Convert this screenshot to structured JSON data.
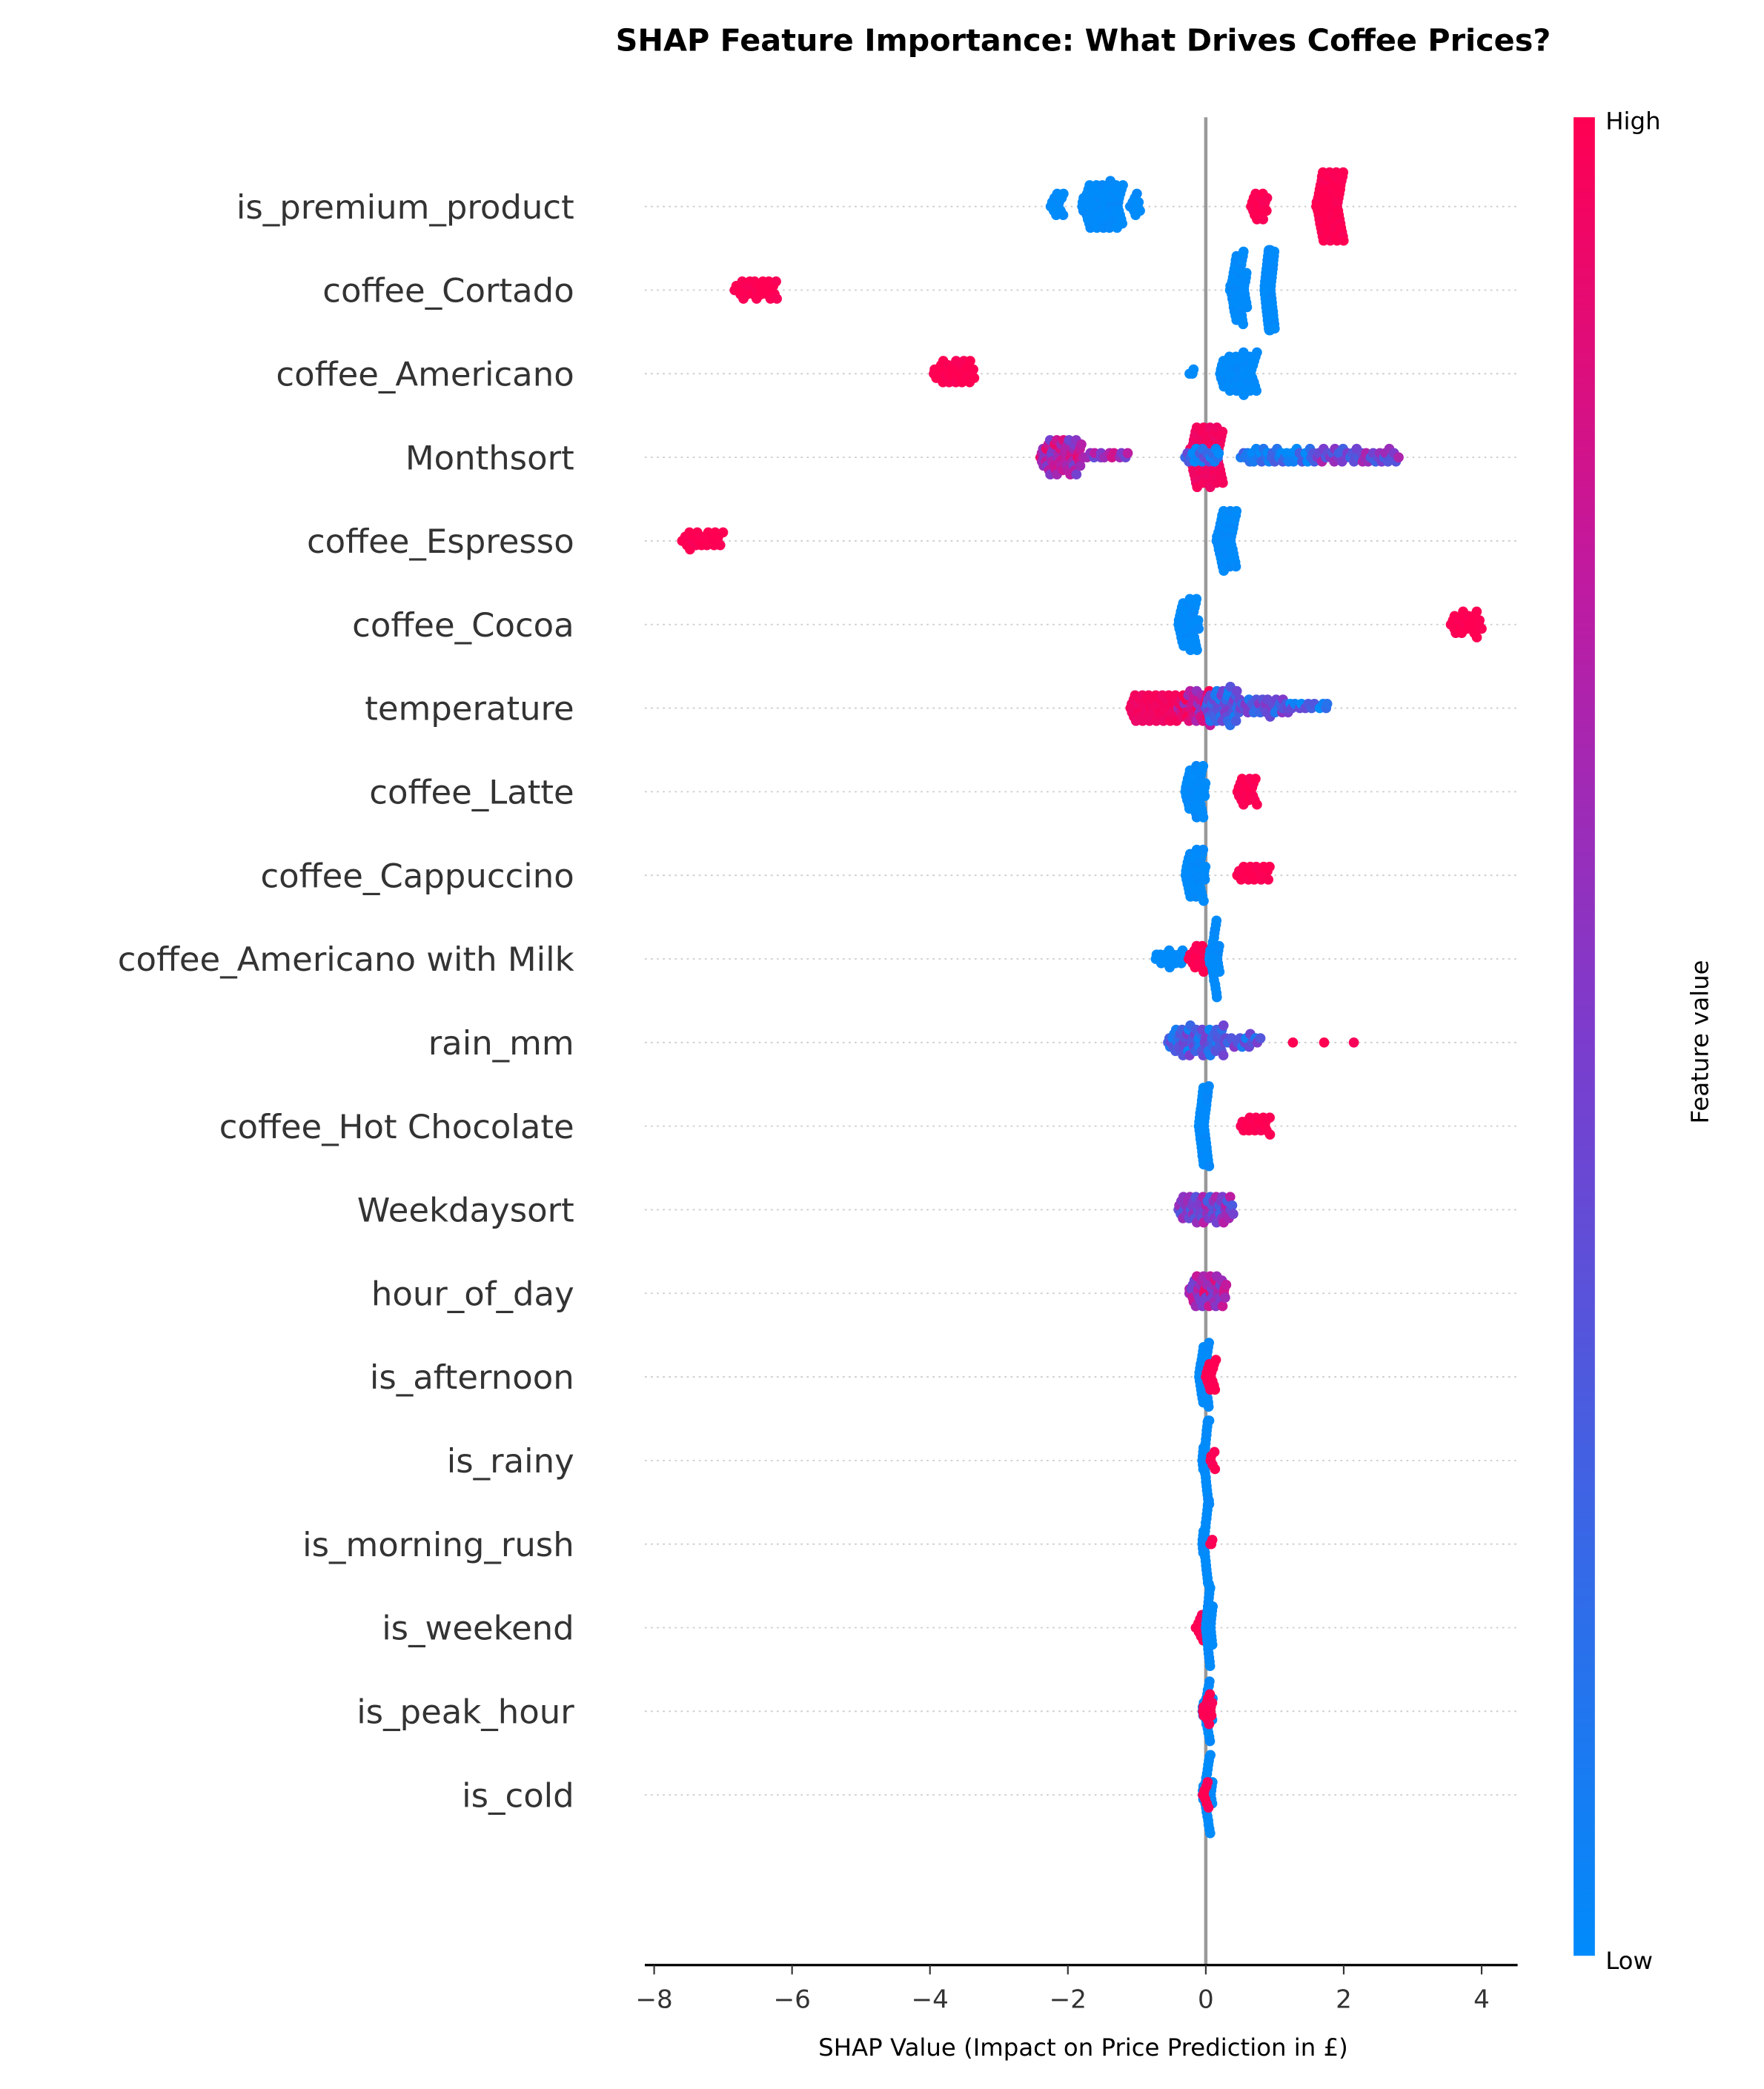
{
  "chart_data": {
    "type": "scatter",
    "subtype": "shap-beeswarm",
    "title": "SHAP Feature Importance: What Drives Coffee Prices?",
    "xlabel": "SHAP Value (Impact on Price Prediction in £)",
    "xlim": [
      -8.3,
      4.6
    ],
    "xticks": [
      -8,
      -6,
      -4,
      -2,
      0,
      2,
      4
    ],
    "xtick_labels": [
      "−8",
      "−6",
      "−4",
      "−2",
      "0",
      "2",
      "4"
    ],
    "colorbar": {
      "label": "Feature value",
      "high": "High",
      "low": "Low",
      "low_color": "#008bfb",
      "high_color": "#ff0052"
    },
    "features": [
      {
        "name": "is_premium_product",
        "clusters": [
          [
            -2.25,
            -2.05,
            0,
            12
          ],
          [
            -1.8,
            -1.2,
            0,
            70
          ],
          [
            -1.1,
            -0.95,
            0,
            10
          ],
          [
            0.65,
            0.9,
            1,
            18
          ],
          [
            1.6,
            2.0,
            1,
            70
          ]
        ]
      },
      {
        "name": "coffee_Cortado",
        "clusters": [
          [
            -6.85,
            -6.2,
            1,
            30
          ],
          [
            0.35,
            0.6,
            0,
            45
          ],
          [
            0.85,
            1.0,
            0,
            45
          ]
        ]
      },
      {
        "name": "coffee_Americano",
        "clusters": [
          [
            -3.95,
            -3.35,
            1,
            35
          ],
          [
            -0.25,
            -0.15,
            0,
            3
          ],
          [
            0.2,
            0.75,
            0,
            55
          ]
        ]
      },
      {
        "name": "Monthsort",
        "clusters": [
          [
            -2.4,
            -1.8,
            0.7,
            55
          ],
          [
            -1.8,
            -1.1,
            0.65,
            15
          ],
          [
            -0.25,
            0.25,
            0.95,
            75
          ],
          [
            -0.3,
            0.2,
            0.2,
            20
          ],
          [
            0.5,
            1.6,
            0.1,
            40
          ],
          [
            1.6,
            2.8,
            0.45,
            40
          ]
        ]
      },
      {
        "name": "coffee_Espresso",
        "clusters": [
          [
            -7.6,
            -7.0,
            1,
            25
          ],
          [
            0.15,
            0.45,
            0,
            45
          ]
        ]
      },
      {
        "name": "coffee_Cocoa",
        "clusters": [
          [
            -0.4,
            -0.1,
            0,
            40
          ],
          [
            3.55,
            4.0,
            1,
            25
          ]
        ]
      },
      {
        "name": "temperature",
        "clusters": [
          [
            -1.1,
            -0.4,
            0.95,
            50
          ],
          [
            -0.4,
            0.1,
            0.8,
            40
          ],
          [
            0,
            0.5,
            0.3,
            45
          ],
          [
            0.5,
            1.2,
            0.35,
            30
          ],
          [
            1.1,
            1.8,
            0.2,
            15
          ]
        ]
      },
      {
        "name": "coffee_Latte",
        "clusters": [
          [
            -0.3,
            0,
            0,
            40
          ],
          [
            0.45,
            0.75,
            1,
            20
          ]
        ]
      },
      {
        "name": "coffee_Cappuccino",
        "clusters": [
          [
            -0.3,
            0,
            0,
            40
          ],
          [
            0.45,
            0.95,
            1,
            20
          ]
        ]
      },
      {
        "name": "coffee_Americano with Milk",
        "clusters": [
          [
            -0.75,
            -0.3,
            0,
            18
          ],
          [
            -0.25,
            0.05,
            1,
            20
          ],
          [
            0.05,
            0.2,
            0,
            30
          ]
        ]
      },
      {
        "name": "rain_mm",
        "clusters": [
          [
            -0.55,
            0.3,
            0.25,
            60
          ],
          [
            0.3,
            0.8,
            0.3,
            15
          ],
          [
            1.25,
            1.3,
            1,
            1
          ],
          [
            1.7,
            1.75,
            1,
            1
          ],
          [
            2.1,
            2.15,
            1,
            1
          ]
        ]
      },
      {
        "name": "coffee_Hot Chocolate",
        "clusters": [
          [
            -0.1,
            0.05,
            0,
            40
          ],
          [
            0.5,
            0.95,
            1,
            20
          ]
        ]
      },
      {
        "name": "Weekdaysort",
        "clusters": [
          [
            -0.4,
            0.4,
            0.5,
            55
          ]
        ]
      },
      {
        "name": "hour_of_day",
        "clusters": [
          [
            -0.25,
            0.3,
            0.7,
            45
          ]
        ]
      },
      {
        "name": "is_afternoon",
        "clusters": [
          [
            -0.1,
            0.05,
            0,
            30
          ],
          [
            0,
            0.15,
            1,
            15
          ]
        ]
      },
      {
        "name": "is_rainy",
        "clusters": [
          [
            -0.05,
            0.05,
            0,
            30
          ],
          [
            0.05,
            0.15,
            1,
            5
          ]
        ]
      },
      {
        "name": "is_morning_rush",
        "clusters": [
          [
            -0.05,
            0.05,
            0,
            30
          ],
          [
            0.05,
            0.1,
            1,
            3
          ]
        ]
      },
      {
        "name": "is_weekend",
        "clusters": [
          [
            -0.15,
            0.0,
            1,
            10
          ],
          [
            0,
            0.1,
            0,
            30
          ]
        ]
      },
      {
        "name": "is_peak_hour",
        "clusters": [
          [
            -0.05,
            0.1,
            0,
            25
          ],
          [
            -0.05,
            0.1,
            1,
            15
          ]
        ]
      },
      {
        "name": "is_cold",
        "clusters": [
          [
            -0.05,
            0.1,
            0,
            30
          ],
          [
            -0.05,
            0.05,
            1,
            8
          ]
        ]
      }
    ]
  }
}
